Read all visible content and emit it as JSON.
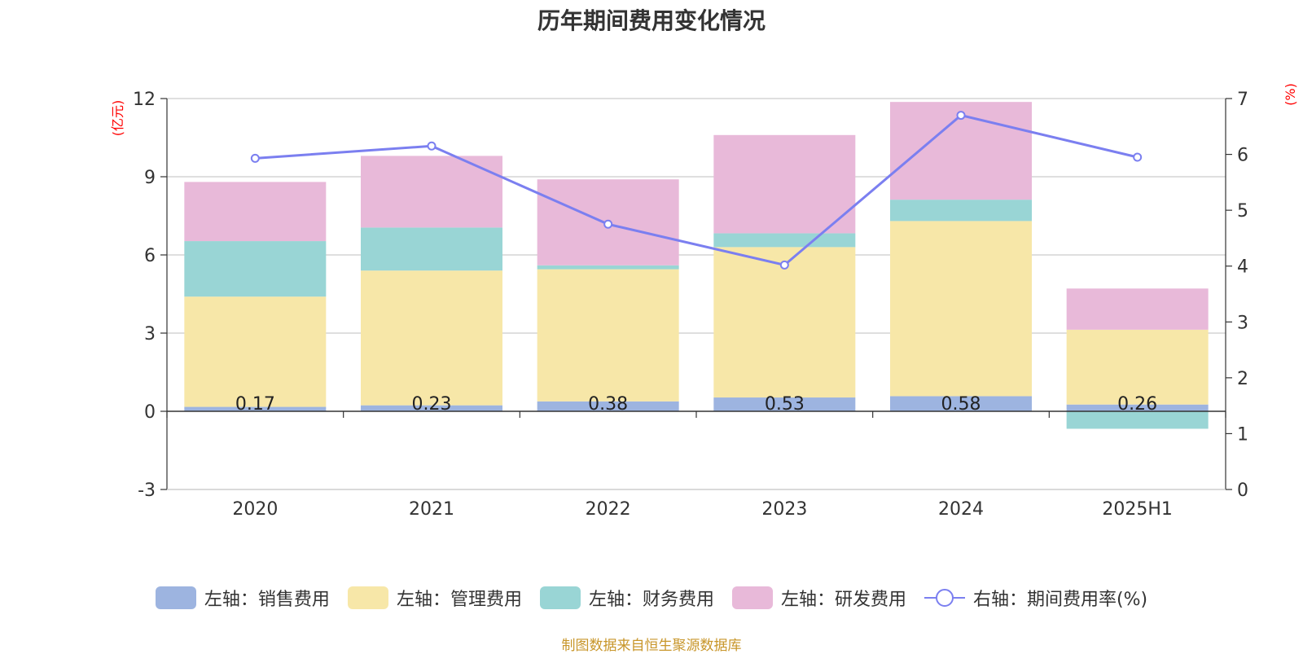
{
  "title": "历年期间费用变化情况",
  "source": "制图数据来自恒生聚源数据库",
  "chart_data": {
    "type": "bar",
    "stacked": true,
    "categories": [
      "2020",
      "2021",
      "2022",
      "2023",
      "2024",
      "2025H1"
    ],
    "left_axis": {
      "unit": "(亿元)",
      "ylim": [
        -3,
        12
      ],
      "ticks": [
        -3,
        0,
        3,
        6,
        9,
        12
      ],
      "color": "#ff0000"
    },
    "right_axis": {
      "unit": "(%)",
      "ylim": [
        0,
        7
      ],
      "ticks": [
        0,
        1,
        2,
        3,
        4,
        5,
        6,
        7
      ],
      "color": "#ff0000"
    },
    "grid": true,
    "legend_position": "bottom",
    "series": [
      {
        "name": "左轴：销售费用",
        "color": "#9db4e0",
        "values": [
          0.17,
          0.23,
          0.38,
          0.53,
          0.58,
          0.26
        ],
        "data_labels": [
          "0.17",
          "0.23",
          "0.38",
          "0.53",
          "0.58",
          "0.26"
        ]
      },
      {
        "name": "左轴：管理费用",
        "color": "#f7e7a8",
        "values": [
          4.23,
          5.17,
          5.07,
          5.77,
          6.72,
          2.87
        ]
      },
      {
        "name": "左轴：财务费用",
        "color": "#99d5d5",
        "values": [
          2.13,
          1.65,
          0.15,
          0.53,
          0.82,
          -0.67
        ]
      },
      {
        "name": "左轴：研发费用",
        "color": "#e8b9d9",
        "values": [
          2.27,
          2.75,
          3.3,
          3.77,
          3.75,
          1.58
        ]
      }
    ],
    "line_series": {
      "name": "右轴：期间费用率(%)",
      "color": "#7b7ff0",
      "values": [
        5.93,
        6.15,
        4.75,
        4.02,
        6.7,
        5.95
      ]
    }
  }
}
